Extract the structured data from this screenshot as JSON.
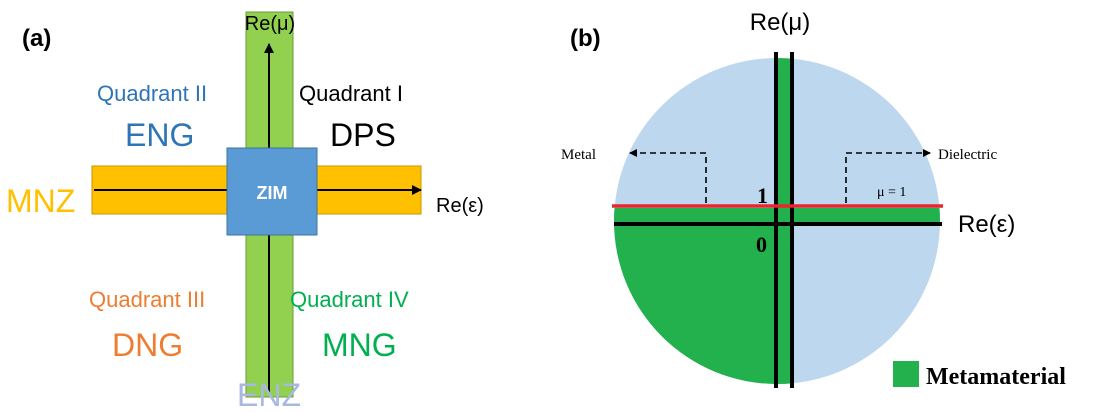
{
  "panel_a": {
    "label": "(a)",
    "axis_y": "Re(μ)",
    "axis_x": "Re(ε)",
    "center": "ZIM",
    "left_band": "MNZ",
    "bottom_band": "ENZ",
    "q1_title": "Quadrant I",
    "q1_name": "DPS",
    "q2_title": "Quadrant II",
    "q2_name": "ENG",
    "q3_title": "Quadrant III",
    "q3_name": "DNG",
    "q4_title": "Quadrant IV",
    "q4_name": "MNG"
  },
  "panel_b": {
    "label": "(b)",
    "axis_y": "Re(μ)",
    "axis_x": "Re(ε)",
    "metal": "Metal",
    "dielectric": "Dielectric",
    "mu_line": "μ = 1",
    "one": "1",
    "zero": "0",
    "legend": "Metamaterial"
  },
  "colors": {
    "green": "#92d050",
    "orange": "#ffc000",
    "zim_blue": "#5b9bd5",
    "light_blue": "#bdd7ee",
    "meta_green": "#22b14c",
    "red_line": "#e8262b",
    "q1_text": "#000000",
    "q2_text": "#2e75b6",
    "q3_text": "#ed7d31",
    "q4_text": "#00b050",
    "enz_text": "#a8b8e0"
  }
}
